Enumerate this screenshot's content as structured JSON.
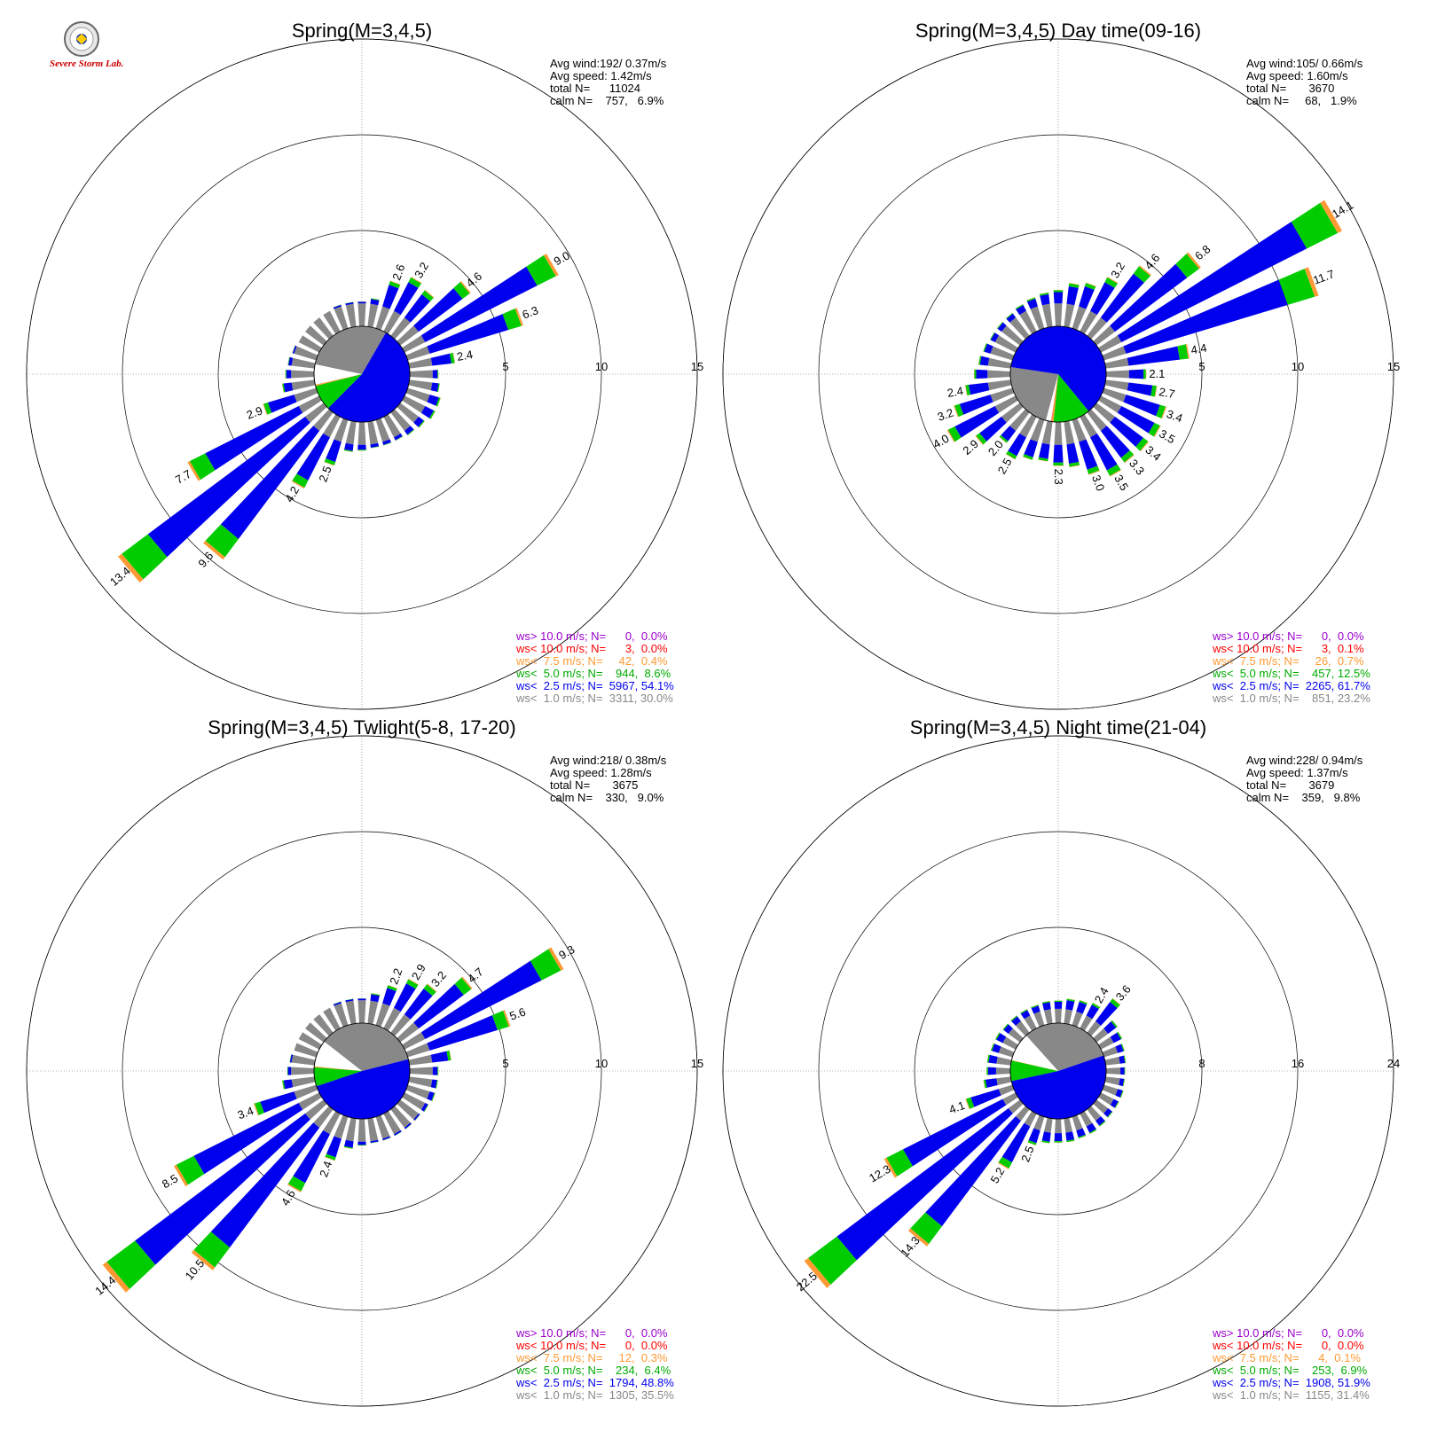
{
  "logo": {
    "text": "Severe Storm Lab."
  },
  "chart_data": [
    {
      "type": "wind-rose",
      "title": "Spring(M=3,4,5)",
      "stats": [
        "Avg wind:192/ 0.37m/s",
        "Avg speed: 1.42m/s",
        "total N=      11024",
        "calm N=    757,   6.9%"
      ],
      "radial_ticks": [
        5,
        10,
        15
      ],
      "rmax": 15,
      "mean_wind": {
        "dir": 192,
        "pct": [
          30.0,
          54.1,
          8.6,
          0.4,
          0.0,
          0.0
        ]
      },
      "bars": [
        {
          "dir": 0,
          "total": 1.3
        },
        {
          "dir": 10,
          "total": 1.5
        },
        {
          "dir": 20,
          "total": 2.6,
          "label": "2.6"
        },
        {
          "dir": 30,
          "total": 3.2,
          "label": "3.2"
        },
        {
          "dir": 40,
          "total": 3.0
        },
        {
          "dir": 50,
          "total": 4.6,
          "label": "4.6"
        },
        {
          "dir": 60,
          "total": 9.0,
          "label": "9.0"
        },
        {
          "dir": 70,
          "total": 6.3,
          "label": "6.3"
        },
        {
          "dir": 80,
          "total": 2.4,
          "label": "2.4"
        },
        {
          "dir": 90,
          "total": 1.5
        },
        {
          "dir": 100,
          "total": 1.6
        },
        {
          "dir": 110,
          "total": 1.8
        },
        {
          "dir": 120,
          "total": 1.8
        },
        {
          "dir": 130,
          "total": 1.6
        },
        {
          "dir": 140,
          "total": 1.5
        },
        {
          "dir": 150,
          "total": 1.4
        },
        {
          "dir": 160,
          "total": 1.4
        },
        {
          "dir": 170,
          "total": 1.4
        },
        {
          "dir": 180,
          "total": 1.5
        },
        {
          "dir": 190,
          "total": 1.6
        },
        {
          "dir": 200,
          "total": 2.5,
          "label": "2.5"
        },
        {
          "dir": 210,
          "total": 4.2,
          "label": "4.2"
        },
        {
          "dir": 220,
          "total": 9.6,
          "label": "9.6"
        },
        {
          "dir": 230,
          "total": 13.4,
          "label": "13.4"
        },
        {
          "dir": 240,
          "total": 7.7,
          "label": "7.7"
        },
        {
          "dir": 250,
          "total": 2.9,
          "label": "2.9"
        },
        {
          "dir": 260,
          "total": 1.7
        },
        {
          "dir": 270,
          "total": 1.5
        },
        {
          "dir": 280,
          "total": 1.4
        },
        {
          "dir": 290,
          "total": 1.3
        },
        {
          "dir": 300,
          "total": 1.2
        },
        {
          "dir": 310,
          "total": 1.2
        },
        {
          "dir": 320,
          "total": 1.2
        },
        {
          "dir": 330,
          "total": 1.2
        },
        {
          "dir": 340,
          "total": 1.3
        },
        {
          "dir": 350,
          "total": 1.3
        }
      ],
      "legend": [
        {
          "text": "ws> 10.0 m/s; N=      0,  0.0%",
          "color": "#9900cc"
        },
        {
          "text": "ws< 10.0 m/s; N=      3,  0.0%",
          "color": "#ff0000"
        },
        {
          "text": "ws<  7.5 m/s; N=     42,  0.4%",
          "color": "#ff9933"
        },
        {
          "text": "ws<  5.0 m/s; N=    944,  8.6%",
          "color": "#00aa00"
        },
        {
          "text": "ws<  2.5 m/s; N=  5967, 54.1%",
          "color": "#0000ee"
        },
        {
          "text": "ws<  1.0 m/s; N=  3311, 30.0%",
          "color": "#888888"
        }
      ]
    },
    {
      "type": "wind-rose",
      "title": "Spring(M=3,4,5) Day time(09-16)",
      "stats": [
        "Avg wind:105/ 0.66m/s",
        "Avg speed: 1.60m/s",
        "total N=       3670",
        "calm N=     68,   1.9%"
      ],
      "radial_ticks": [
        5,
        10,
        15
      ],
      "rmax": 15,
      "mean_wind": {
        "dir": 105,
        "pct": [
          23.2,
          61.7,
          12.5,
          0.7,
          0.1,
          0.0
        ]
      },
      "bars": [
        {
          "dir": 0,
          "total": 1.9
        },
        {
          "dir": 10,
          "total": 2.3
        },
        {
          "dir": 20,
          "total": 2.5
        },
        {
          "dir": 30,
          "total": 3.2,
          "label": "3.2"
        },
        {
          "dir": 40,
          "total": 4.6,
          "label": "4.6"
        },
        {
          "dir": 50,
          "total": 6.8,
          "label": "6.8"
        },
        {
          "dir": 60,
          "total": 14.1,
          "label": "14.1"
        },
        {
          "dir": 70,
          "total": 11.7,
          "label": "11.7"
        },
        {
          "dir": 80,
          "total": 4.4,
          "label": "4.4"
        },
        {
          "dir": 90,
          "total": 2.1,
          "label": "2.1"
        },
        {
          "dir": 100,
          "total": 2.7,
          "label": "2.7"
        },
        {
          "dir": 110,
          "total": 3.4,
          "label": "3.4"
        },
        {
          "dir": 120,
          "total": 3.5,
          "label": "3.5"
        },
        {
          "dir": 130,
          "total": 3.4,
          "label": "3.4"
        },
        {
          "dir": 140,
          "total": 3.3,
          "label": "3.3"
        },
        {
          "dir": 150,
          "total": 3.5,
          "label": "3.5"
        },
        {
          "dir": 160,
          "total": 3.0,
          "label": "3.0"
        },
        {
          "dir": 170,
          "total": 2.4
        },
        {
          "dir": 180,
          "total": 2.3,
          "label": "2.3"
        },
        {
          "dir": 190,
          "total": 2.1
        },
        {
          "dir": 200,
          "total": 2.2
        },
        {
          "dir": 210,
          "total": 2.5,
          "label": "2.5"
        },
        {
          "dir": 220,
          "total": 2.0,
          "label": "2.0"
        },
        {
          "dir": 230,
          "total": 2.9,
          "label": "2.9"
        },
        {
          "dir": 240,
          "total": 4.0,
          "label": "4.0"
        },
        {
          "dir": 250,
          "total": 3.2,
          "label": "3.2"
        },
        {
          "dir": 260,
          "total": 2.4,
          "label": "2.4"
        },
        {
          "dir": 270,
          "total": 1.9
        },
        {
          "dir": 280,
          "total": 1.7
        },
        {
          "dir": 290,
          "total": 1.6
        },
        {
          "dir": 300,
          "total": 1.5
        },
        {
          "dir": 310,
          "total": 1.5
        },
        {
          "dir": 320,
          "total": 1.5
        },
        {
          "dir": 330,
          "total": 1.6
        },
        {
          "dir": 340,
          "total": 1.7
        },
        {
          "dir": 350,
          "total": 1.8
        }
      ],
      "legend": [
        {
          "text": "ws> 10.0 m/s; N=      0,  0.0%",
          "color": "#9900cc"
        },
        {
          "text": "ws< 10.0 m/s; N=      3,  0.1%",
          "color": "#ff0000"
        },
        {
          "text": "ws<  7.5 m/s; N=     26,  0.7%",
          "color": "#ff9933"
        },
        {
          "text": "ws<  5.0 m/s; N=    457, 12.5%",
          "color": "#00aa00"
        },
        {
          "text": "ws<  2.5 m/s; N=  2265, 61.7%",
          "color": "#0000ee"
        },
        {
          "text": "ws<  1.0 m/s; N=    851, 23.2%",
          "color": "#888888"
        }
      ]
    },
    {
      "type": "wind-rose",
      "title": "Spring(M=3,4,5) Twlight(5-8, 17-20)",
      "stats": [
        "Avg wind:218/ 0.38m/s",
        "Avg speed: 1.28m/s",
        "total N=       3675",
        "calm N=    330,   9.0%"
      ],
      "radial_ticks": [
        5,
        10,
        15
      ],
      "rmax": 15,
      "mean_wind": {
        "dir": 218,
        "pct": [
          35.5,
          48.8,
          6.4,
          0.3,
          0.0,
          0.0
        ]
      },
      "bars": [
        {
          "dir": 0,
          "total": 1.3
        },
        {
          "dir": 10,
          "total": 1.6
        },
        {
          "dir": 20,
          "total": 2.2,
          "label": "2.2"
        },
        {
          "dir": 30,
          "total": 2.9,
          "label": "2.9"
        },
        {
          "dir": 40,
          "total": 3.2,
          "label": "3.2"
        },
        {
          "dir": 50,
          "total": 4.7,
          "label": "4.7"
        },
        {
          "dir": 60,
          "total": 9.3,
          "label": "9.3"
        },
        {
          "dir": 70,
          "total": 5.6,
          "label": "5.6"
        },
        {
          "dir": 80,
          "total": 2.2
        },
        {
          "dir": 90,
          "total": 1.5
        },
        {
          "dir": 100,
          "total": 1.5
        },
        {
          "dir": 110,
          "total": 1.5
        },
        {
          "dir": 120,
          "total": 1.4
        },
        {
          "dir": 130,
          "total": 1.3
        },
        {
          "dir": 140,
          "total": 1.3
        },
        {
          "dir": 150,
          "total": 1.3
        },
        {
          "dir": 160,
          "total": 1.3
        },
        {
          "dir": 170,
          "total": 1.3
        },
        {
          "dir": 180,
          "total": 1.4
        },
        {
          "dir": 190,
          "total": 1.6
        },
        {
          "dir": 200,
          "total": 2.4,
          "label": "2.4"
        },
        {
          "dir": 210,
          "total": 4.6,
          "label": "4.6"
        },
        {
          "dir": 220,
          "total": 10.5,
          "label": "10.5"
        },
        {
          "dir": 230,
          "total": 14.4,
          "label": "14.4"
        },
        {
          "dir": 240,
          "total": 8.5,
          "label": "8.5"
        },
        {
          "dir": 250,
          "total": 3.4,
          "label": "3.4"
        },
        {
          "dir": 260,
          "total": 1.7
        },
        {
          "dir": 270,
          "total": 1.4
        },
        {
          "dir": 280,
          "total": 1.3
        },
        {
          "dir": 290,
          "total": 1.2
        },
        {
          "dir": 300,
          "total": 1.2
        },
        {
          "dir": 310,
          "total": 1.2
        },
        {
          "dir": 320,
          "total": 1.2
        },
        {
          "dir": 330,
          "total": 1.2
        },
        {
          "dir": 340,
          "total": 1.3
        },
        {
          "dir": 350,
          "total": 1.3
        }
      ],
      "legend": [
        {
          "text": "ws> 10.0 m/s; N=      0,  0.0%",
          "color": "#9900cc"
        },
        {
          "text": "ws< 10.0 m/s; N=      0,  0.0%",
          "color": "#ff0000"
        },
        {
          "text": "ws<  7.5 m/s; N=     12,  0.3%",
          "color": "#ff9933"
        },
        {
          "text": "ws<  5.0 m/s; N=    234,  6.4%",
          "color": "#00aa00"
        },
        {
          "text": "ws<  2.5 m/s; N=  1794, 48.8%",
          "color": "#0000ee"
        },
        {
          "text": "ws<  1.0 m/s; N=  1305, 35.5%",
          "color": "#888888"
        }
      ]
    },
    {
      "type": "wind-rose",
      "title": "Spring(M=3,4,5) Night time(21-04)",
      "stats": [
        "Avg wind:228/ 0.94m/s",
        "Avg speed: 1.37m/s",
        "total N=       3679",
        "calm N=    359,   9.8%"
      ],
      "radial_ticks": [
        8,
        16,
        24
      ],
      "rmax": 24,
      "mean_wind": {
        "dir": 228,
        "pct": [
          31.4,
          51.9,
          6.9,
          0.1,
          0.0,
          0.0
        ]
      },
      "bars": [
        {
          "dir": 0,
          "total": 1.9
        },
        {
          "dir": 10,
          "total": 2.1
        },
        {
          "dir": 20,
          "total": 2.2
        },
        {
          "dir": 30,
          "total": 2.4,
          "label": "2.4"
        },
        {
          "dir": 40,
          "total": 3.6,
          "label": "3.6"
        },
        {
          "dir": 50,
          "total": 2.2
        },
        {
          "dir": 60,
          "total": 2.0
        },
        {
          "dir": 70,
          "total": 1.8
        },
        {
          "dir": 80,
          "total": 1.7
        },
        {
          "dir": 90,
          "total": 1.6
        },
        {
          "dir": 100,
          "total": 1.6
        },
        {
          "dir": 110,
          "total": 1.7
        },
        {
          "dir": 120,
          "total": 1.7
        },
        {
          "dir": 130,
          "total": 1.7
        },
        {
          "dir": 140,
          "total": 1.8
        },
        {
          "dir": 150,
          "total": 1.9
        },
        {
          "dir": 160,
          "total": 1.9
        },
        {
          "dir": 170,
          "total": 2.0
        },
        {
          "dir": 180,
          "total": 2.0
        },
        {
          "dir": 190,
          "total": 2.1
        },
        {
          "dir": 200,
          "total": 2.5,
          "label": "2.5"
        },
        {
          "dir": 210,
          "total": 5.2,
          "label": "5.2"
        },
        {
          "dir": 220,
          "total": 14.3,
          "label": "14.3"
        },
        {
          "dir": 230,
          "total": 22.5,
          "label": "22.5"
        },
        {
          "dir": 240,
          "total": 12.3,
          "label": "12.3"
        },
        {
          "dir": 250,
          "total": 4.1,
          "label": "4.1"
        },
        {
          "dir": 260,
          "total": 2.3
        },
        {
          "dir": 270,
          "total": 2.0
        },
        {
          "dir": 280,
          "total": 2.0
        },
        {
          "dir": 290,
          "total": 1.9
        },
        {
          "dir": 300,
          "total": 1.9
        },
        {
          "dir": 310,
          "total": 1.8
        },
        {
          "dir": 320,
          "total": 1.8
        },
        {
          "dir": 330,
          "total": 1.8
        },
        {
          "dir": 340,
          "total": 1.8
        },
        {
          "dir": 350,
          "total": 1.9
        }
      ],
      "legend": [
        {
          "text": "ws> 10.0 m/s; N=      0,  0.0%",
          "color": "#9900cc"
        },
        {
          "text": "ws< 10.0 m/s; N=      0,  0.0%",
          "color": "#ff0000"
        },
        {
          "text": "ws<  7.5 m/s; N=      4,  0.1%",
          "color": "#ff9933"
        },
        {
          "text": "ws<  5.0 m/s; N=    253,  6.9%",
          "color": "#00aa00"
        },
        {
          "text": "ws<  2.5 m/s; N=  1908, 51.9%",
          "color": "#0000ee"
        },
        {
          "text": "ws<  1.0 m/s; N=  1155, 31.4%",
          "color": "#888888"
        }
      ]
    }
  ]
}
